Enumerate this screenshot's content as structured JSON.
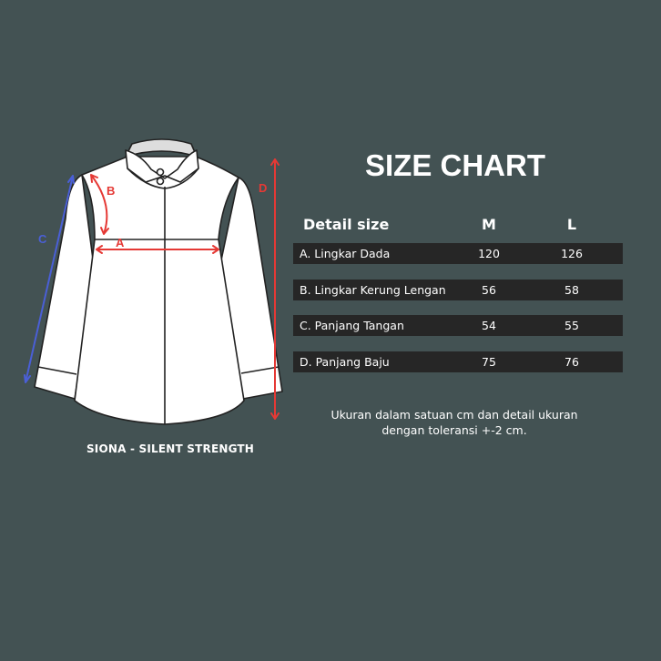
{
  "title": "SIZE CHART",
  "product_caption": "SIONA - SILENT STRENGTH",
  "diagram_labels": {
    "a": "A",
    "b": "B",
    "c": "C",
    "d": "D"
  },
  "table": {
    "headers": [
      "Detail size",
      "M",
      "L"
    ],
    "rows": [
      {
        "label": "A. Lingkar Dada",
        "m": "120",
        "l": "126"
      },
      {
        "label": "B. Lingkar Kerung Lengan",
        "m": "56",
        "l": "58"
      },
      {
        "label": "C. Panjang Tangan",
        "m": "54",
        "l": "55"
      },
      {
        "label": "D. Panjang Baju",
        "m": "75",
        "l": "76"
      }
    ]
  },
  "note": [
    "Ukuran dalam satuan cm dan detail ukuran",
    "dengan toleransi +-2 cm."
  ],
  "colors": {
    "background": "#435253",
    "row": "#262626",
    "red": "#e53935",
    "blue": "#4a5fd6"
  }
}
